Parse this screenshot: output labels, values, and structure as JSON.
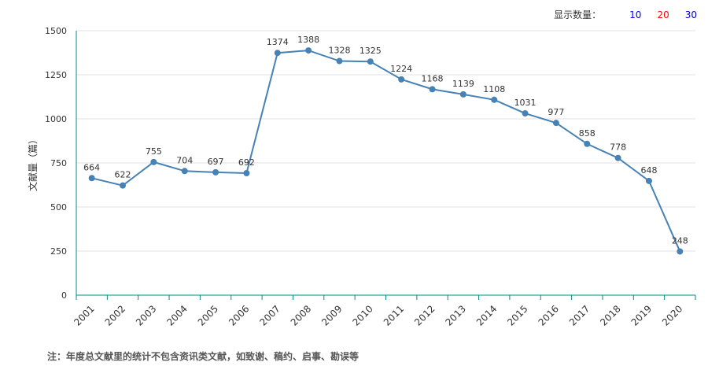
{
  "controls": {
    "count_label": "显示数量：",
    "options": [
      {
        "label": "10",
        "color": "#0000ff"
      },
      {
        "label": "20",
        "color": "#ff0000"
      },
      {
        "label": "30",
        "color": "#0000cc"
      }
    ]
  },
  "note": "注：年度总文献里的统计不包含资讯类文献，如致谢、稿约、启事、勘误等",
  "colors": {
    "line": "#4682b4",
    "axis": "#008b8b",
    "grid": "#e0e0e0"
  },
  "chart_data": {
    "type": "line",
    "ylabel": "文献量（篇）",
    "ylim": [
      0,
      1500
    ],
    "yticks": [
      0,
      250,
      500,
      750,
      1000,
      1250,
      1500
    ],
    "categories": [
      "2001",
      "2002",
      "2003",
      "2004",
      "2005",
      "2006",
      "2007",
      "2008",
      "2009",
      "2010",
      "2011",
      "2012",
      "2013",
      "2014",
      "2015",
      "2016",
      "2017",
      "2018",
      "2019",
      "2020"
    ],
    "series": [
      {
        "values": [
          664,
          622,
          755,
          704,
          697,
          692,
          1374,
          1388,
          1328,
          1325,
          1224,
          1168,
          1139,
          1108,
          1031,
          977,
          858,
          778,
          648,
          248
        ]
      }
    ],
    "grid": true
  }
}
